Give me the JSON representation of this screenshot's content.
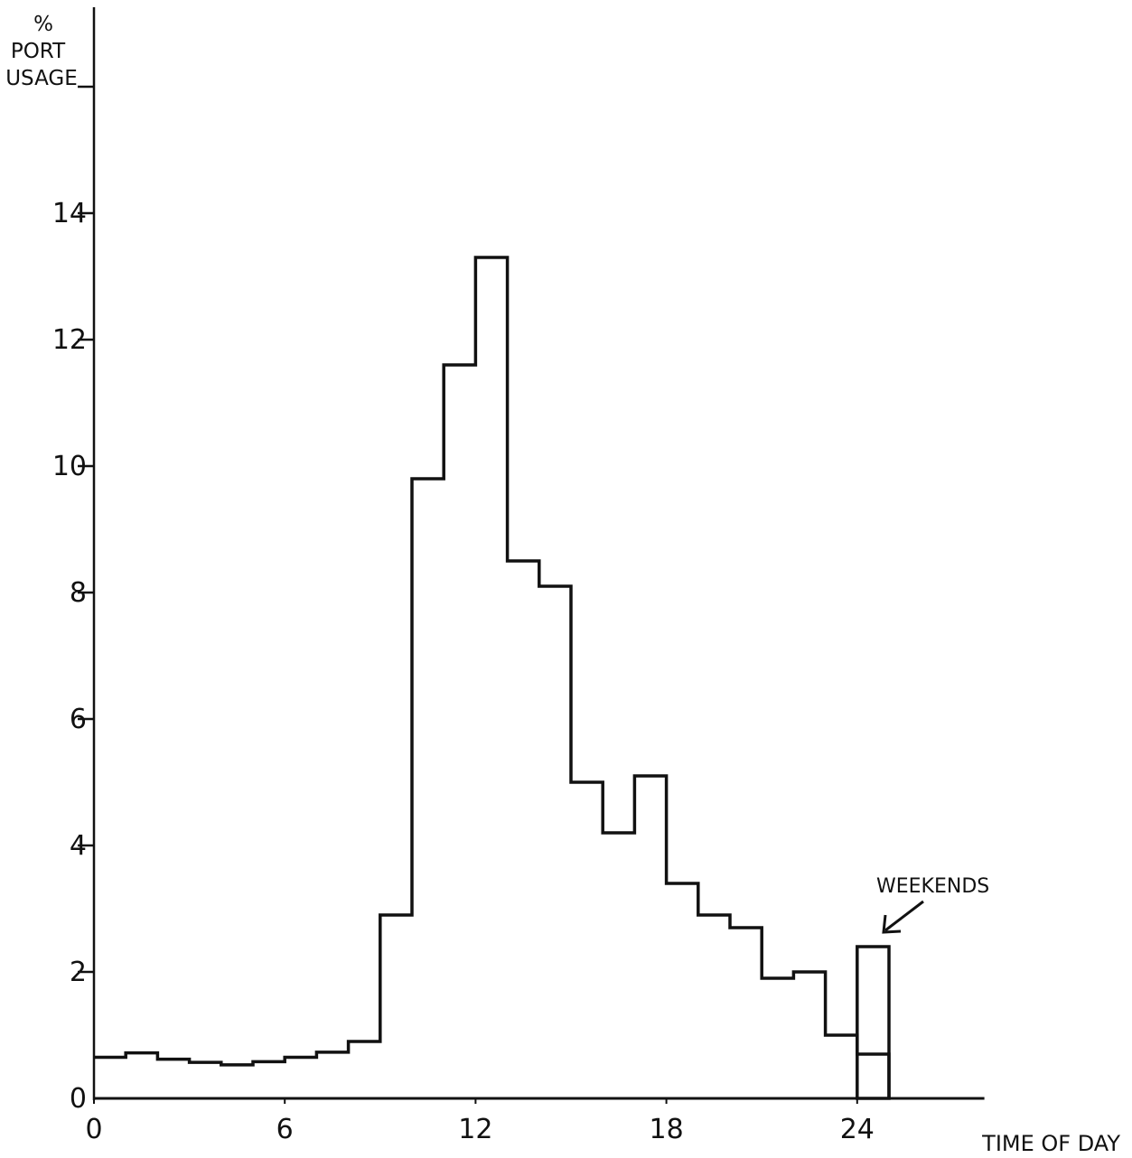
{
  "chart_data": {
    "type": "bar",
    "ylabel_lines": [
      "%",
      "PORT",
      "USAGE"
    ],
    "xlabel": "TIME OF DAY",
    "x_ticks": [
      0,
      6,
      12,
      18,
      24
    ],
    "x_tick_labels": [
      "0",
      "6",
      "12",
      "18",
      "24"
    ],
    "y_ticks": [
      0,
      2,
      4,
      6,
      8,
      10,
      12,
      14,
      16
    ],
    "y_tick_labels": [
      "0",
      "2",
      "4",
      "6",
      "8",
      "10",
      "12",
      "14",
      ""
    ],
    "xlim": [
      0,
      28
    ],
    "ylim": [
      0,
      16.4
    ],
    "bin_width": 1,
    "series": [
      {
        "values": [
          0.65,
          0.72,
          0.62,
          0.57,
          0.53,
          0.58,
          0.65,
          0.73,
          0.9,
          2.9,
          9.8,
          11.6,
          13.3,
          8.5,
          8.1,
          5.0,
          4.2,
          5.1,
          3.4,
          2.9,
          2.7,
          1.9,
          2.0,
          1.0,
          0.7
        ]
      }
    ],
    "annotation": {
      "text": "WEEKENDS",
      "x_start": 24,
      "x_end": 25,
      "value": 2.4
    }
  }
}
